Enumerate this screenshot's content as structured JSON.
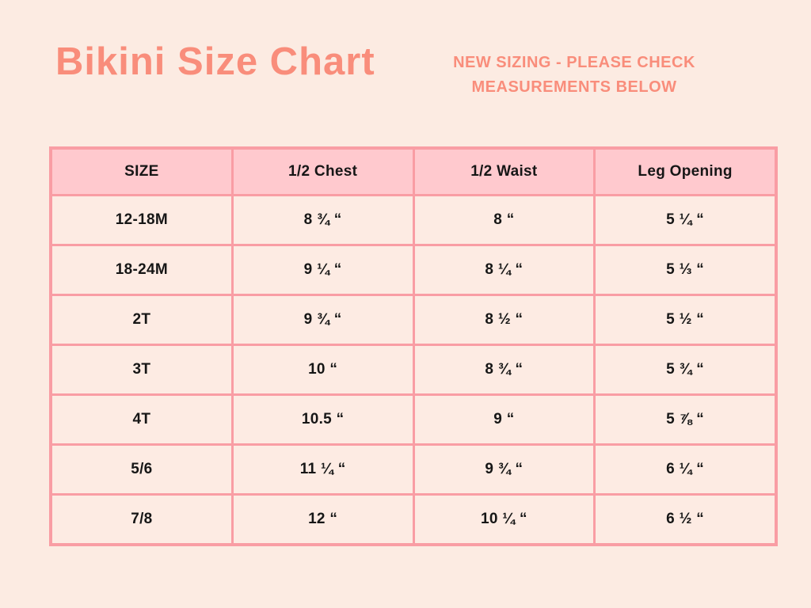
{
  "header": {
    "title": "Bikini Size Chart",
    "subtitle_line1": "NEW SIZING - PLEASE CHECK",
    "subtitle_line2": "MEASUREMENTS BELOW"
  },
  "colors": {
    "page_background": "#fcebe2",
    "title_text": "#f98d7b",
    "subtitle_text": "#f98d7b",
    "table_border": "#f99da4",
    "header_cell_fill": "#ffc9ce",
    "data_cell_fill": "#fdebe3",
    "cell_text": "#161616"
  },
  "chart_data": {
    "type": "table",
    "title": "Bikini Size Chart",
    "columns": [
      "SIZE",
      "1/2 Chest",
      "1/2 Waist",
      "Leg Opening"
    ],
    "rows": [
      [
        "12-18M",
        "8 ¾ “",
        "8 “",
        "5 ¼ “"
      ],
      [
        "18-24M",
        "9 ¼ “",
        "8 ¼ “",
        "5 ⅓ “"
      ],
      [
        "2T",
        "9 ¾ “",
        "8 ½ “",
        "5 ½ “"
      ],
      [
        "3T",
        "10 “",
        "8 ¾ “",
        "5 ¾ “"
      ],
      [
        "4T",
        "10.5 “",
        "9 “",
        "5 ⅞ “"
      ],
      [
        "5/6",
        "11 ¼ “",
        "9 ¾ “",
        "6 ¼ “"
      ],
      [
        "7/8",
        "12 “",
        "10 ¼ “",
        "6 ½ “"
      ]
    ]
  }
}
